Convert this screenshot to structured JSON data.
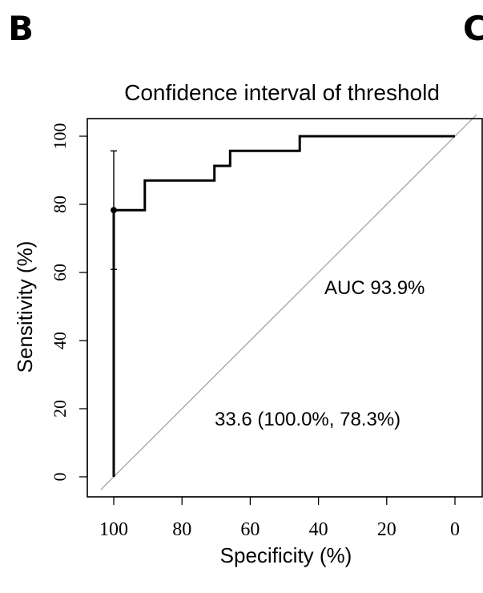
{
  "panel_letters": {
    "left": "B",
    "right": "C"
  },
  "chart_data": {
    "type": "line",
    "title": "Confidence interval of threshold",
    "xlabel": "Specificity (%)",
    "ylabel": "Sensitivity (%)",
    "xlim": [
      100,
      0
    ],
    "ylim": [
      0,
      100
    ],
    "x_reversed": true,
    "grid": false,
    "x_ticks": [
      100,
      80,
      60,
      40,
      20,
      0
    ],
    "x_tick_labels": [
      "100",
      "80",
      "60",
      "40",
      "20",
      "0"
    ],
    "y_ticks": [
      0,
      20,
      40,
      60,
      80,
      100
    ],
    "y_tick_labels": [
      "0",
      "20",
      "40",
      "60",
      "80",
      "100"
    ],
    "series": [
      {
        "points": [
          [
            100,
            0
          ],
          [
            100,
            78.3
          ],
          [
            90.9,
            78.3
          ],
          [
            90.9,
            87
          ],
          [
            70.5,
            87
          ],
          [
            70.5,
            91.3
          ],
          [
            65.9,
            91.3
          ],
          [
            65.9,
            95.7
          ],
          [
            45.5,
            95.7
          ],
          [
            45.5,
            100
          ],
          [
            0,
            100
          ]
        ]
      }
    ],
    "reference_line": {
      "from": [
        100,
        0
      ],
      "to": [
        0,
        100
      ],
      "color": "#a8a8a8"
    },
    "threshold_point": {
      "x": 100,
      "y": 78.3,
      "ci_low": 60.9,
      "ci_high": 95.7
    },
    "annotations": {
      "auc": "AUC 93.9%",
      "threshold": "33.6 (100.0%, 78.3%)"
    }
  }
}
